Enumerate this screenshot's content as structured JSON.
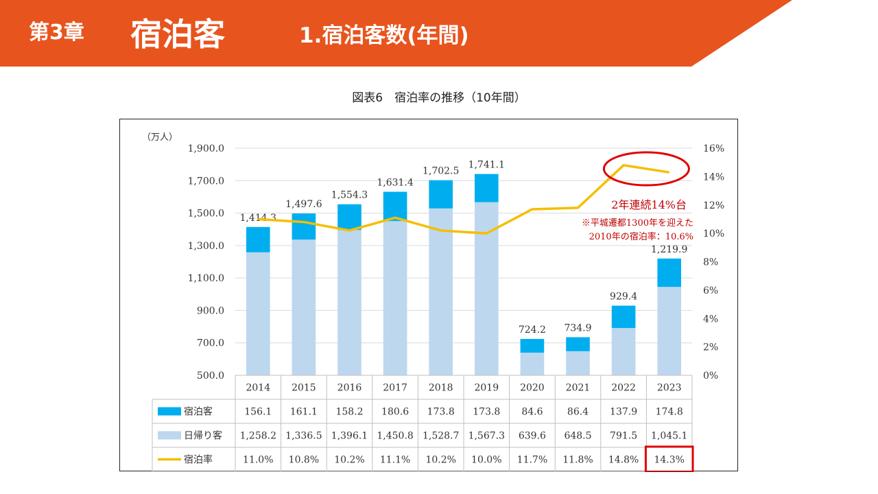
{
  "header": {
    "chapter": "第3章",
    "title": "宿泊客",
    "subtitle": "1.宿泊客数(年間)",
    "color": "#E8541E"
  },
  "figure_title": "図表6　宿泊率の推移（10年間）",
  "chart_data": {
    "type": "bar",
    "stacked": true,
    "categories": [
      "2014",
      "2015",
      "2016",
      "2017",
      "2018",
      "2019",
      "2020",
      "2021",
      "2022",
      "2023"
    ],
    "series": [
      {
        "name": "宿泊客",
        "color": "#00AEEF",
        "values": [
          156.1,
          161.1,
          158.2,
          180.6,
          173.8,
          173.8,
          84.6,
          86.4,
          137.9,
          174.8
        ]
      },
      {
        "name": "日帰り客",
        "color": "#BDD7EE",
        "values": [
          1258.2,
          1336.5,
          1396.1,
          1450.8,
          1528.7,
          1567.3,
          639.6,
          648.5,
          791.5,
          1045.1
        ]
      }
    ],
    "totals": [
      1414.3,
      1497.6,
      1554.3,
      1631.4,
      1702.5,
      1741.1,
      724.2,
      734.9,
      929.4,
      1219.9
    ],
    "total_labels": [
      "1,414.3",
      "1,497.6",
      "1,554.3",
      "1,631.4",
      "1,702.5",
      "1,741.1",
      "724.2",
      "734.9",
      "929.4",
      "1,219.9"
    ],
    "line_series": {
      "name": "宿泊率",
      "color": "#F5BE00",
      "axis": "right",
      "values": [
        11.0,
        10.8,
        10.2,
        11.1,
        10.2,
        10.0,
        11.7,
        11.8,
        14.8,
        14.3
      ]
    },
    "yunit": "（万人）",
    "ylim": [
      500,
      1900
    ],
    "y_ticks": [
      "1,900.0",
      "1,700.0",
      "1,500.0",
      "1,300.0",
      "1,100.0",
      "900.0",
      "700.0",
      "500.0"
    ],
    "y2lim": [
      0,
      16
    ],
    "y2_ticks": [
      "16%",
      "14%",
      "12%",
      "10%",
      "8%",
      "6%",
      "4%",
      "2%",
      "0%"
    ],
    "table_rows": [
      {
        "label": "宿泊客",
        "values": [
          "156.1",
          "161.1",
          "158.2",
          "180.6",
          "173.8",
          "173.8",
          "84.6",
          "86.4",
          "137.9",
          "174.8"
        ]
      },
      {
        "label": "日帰り客",
        "values": [
          "1,258.2",
          "1,336.5",
          "1,396.1",
          "1,450.8",
          "1,528.7",
          "1,567.3",
          "639.6",
          "648.5",
          "791.5",
          "1,045.1"
        ]
      },
      {
        "label": "宿泊率",
        "values": [
          "11.0%",
          "10.8%",
          "10.2%",
          "11.1%",
          "10.2%",
          "10.0%",
          "11.7%",
          "11.8%",
          "14.8%",
          "14.3%"
        ]
      }
    ],
    "annotation": {
      "headline": "2年連続14%台",
      "note_line1": "※平城遷都1300年を迎えた",
      "note_line2": "2010年の宿泊率：10.6%",
      "color": "#C00000"
    },
    "highlight_color": "#E00000",
    "grid": true
  }
}
